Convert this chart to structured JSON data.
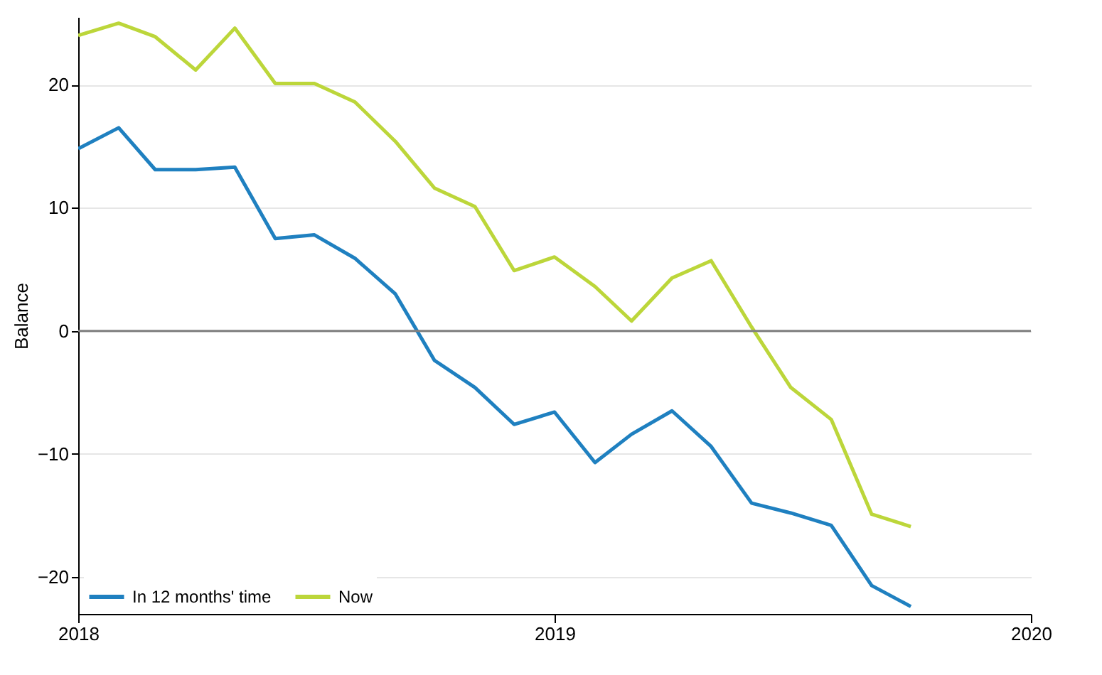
{
  "chart_data": {
    "type": "line",
    "ylabel": "Balance",
    "x": [
      "2018-01",
      "2018-02",
      "2018-03",
      "2018-04",
      "2018-05",
      "2018-06",
      "2018-07",
      "2018-08",
      "2018-09",
      "2018-10",
      "2018-11",
      "2018-12",
      "2019-01",
      "2019-02",
      "2019-03",
      "2019-04",
      "2019-05",
      "2019-06",
      "2019-07",
      "2019-08",
      "2019-09",
      "2019-10"
    ],
    "series": [
      {
        "name": "In 12 months' time",
        "color": "#1f80c0",
        "values": [
          14.8,
          16.5,
          13.1,
          13.1,
          13.3,
          7.5,
          7.8,
          5.9,
          3.0,
          -2.4,
          -4.6,
          -7.6,
          -6.6,
          -10.7,
          -8.4,
          -6.5,
          -9.4,
          -14.0,
          -14.8,
          -15.8,
          -20.7,
          -22.4
        ]
      },
      {
        "name": "Now",
        "color": "#bcd63a",
        "values": [
          24.0,
          25.0,
          23.9,
          21.2,
          24.6,
          20.1,
          20.1,
          18.6,
          15.4,
          11.6,
          10.1,
          4.9,
          6.0,
          3.6,
          0.8,
          4.3,
          5.7,
          0.3,
          -4.6,
          -7.2,
          -14.9,
          -15.9
        ]
      }
    ],
    "xlim": [
      "2018-01",
      "2020-01"
    ],
    "xticks": [
      "2018",
      "2019",
      "2020"
    ],
    "ylim": [
      -23,
      25.5
    ],
    "yticks": [
      -20,
      -10,
      0,
      10,
      20
    ],
    "ref_lines": [
      {
        "axis": "y",
        "value": 0,
        "color": "#808080"
      }
    ],
    "grid": "y",
    "legend": "bottom left",
    "line_style": "solid"
  }
}
